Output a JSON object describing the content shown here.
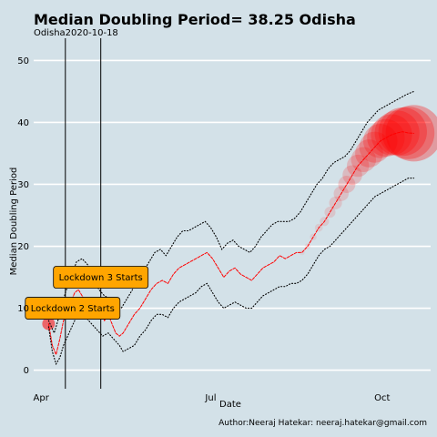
{
  "chart_data": {
    "type": "line",
    "title": "Median Doubling Period=  38.25 Odisha",
    "subtitle": "Odisha2020-10-18",
    "xlabel": "Date",
    "ylabel": "Median Doubling Period",
    "caption": "Author:Neeraj Hatekar: neeraj.hatekar@gmail.com",
    "xlim": [
      "2020-03-28",
      "2020-10-27"
    ],
    "ylim": [
      -3,
      53
    ],
    "x_ticks": [
      {
        "date": "2020-04-01",
        "label": "Apr"
      },
      {
        "date": "2020-07-01",
        "label": "Jul"
      },
      {
        "date": "2020-10-01",
        "label": "Oct"
      }
    ],
    "y_ticks": [
      0,
      10,
      20,
      30,
      40,
      50
    ],
    "grid": "horizontal",
    "colors": {
      "background": "#d3e1e8",
      "grid": "#ffffff",
      "median_line": "#ff0000",
      "bounds_line": "#000000",
      "bubble": "#ff0000",
      "annotation_fill": "#ffa500"
    },
    "vlines": [
      "2020-04-14",
      "2020-05-03"
    ],
    "annotations": [
      {
        "label": "Lockdown 2 Starts",
        "date": "2020-04-14",
        "y": 10
      },
      {
        "label": "Lockdown 3 Starts",
        "date": "2020-05-03",
        "y": 15
      }
    ],
    "series": [
      {
        "kind": "median",
        "points": [
          [
            "2020-04-05",
            7.5
          ],
          [
            "2020-04-07",
            4.0
          ],
          [
            "2020-04-09",
            2.5
          ],
          [
            "2020-04-11",
            5.0
          ],
          [
            "2020-04-13",
            8.0
          ],
          [
            "2020-04-15",
            9.0
          ],
          [
            "2020-04-17",
            11.0
          ],
          [
            "2020-04-19",
            12.5
          ],
          [
            "2020-04-21",
            13.0
          ],
          [
            "2020-04-23",
            12.0
          ],
          [
            "2020-04-25",
            11.0
          ],
          [
            "2020-04-27",
            10.0
          ],
          [
            "2020-04-29",
            9.0
          ],
          [
            "2020-05-01",
            8.5
          ],
          [
            "2020-05-03",
            9.5
          ],
          [
            "2020-05-05",
            8.0
          ],
          [
            "2020-05-07",
            9.0
          ],
          [
            "2020-05-09",
            7.5
          ],
          [
            "2020-05-11",
            6.0
          ],
          [
            "2020-05-13",
            5.5
          ],
          [
            "2020-05-15",
            6.0
          ],
          [
            "2020-05-17",
            7.0
          ],
          [
            "2020-05-19",
            8.0
          ],
          [
            "2020-05-21",
            9.0
          ],
          [
            "2020-05-24",
            10.0
          ],
          [
            "2020-05-27",
            11.5
          ],
          [
            "2020-05-30",
            13.0
          ],
          [
            "2020-06-02",
            14.0
          ],
          [
            "2020-06-05",
            14.5
          ],
          [
            "2020-06-08",
            14.0
          ],
          [
            "2020-06-11",
            15.5
          ],
          [
            "2020-06-14",
            16.5
          ],
          [
            "2020-06-17",
            17.0
          ],
          [
            "2020-06-20",
            17.5
          ],
          [
            "2020-06-23",
            18.0
          ],
          [
            "2020-06-26",
            18.5
          ],
          [
            "2020-06-29",
            19.0
          ],
          [
            "2020-07-02",
            18.0
          ],
          [
            "2020-07-05",
            16.5
          ],
          [
            "2020-07-08",
            15.0
          ],
          [
            "2020-07-11",
            16.0
          ],
          [
            "2020-07-14",
            16.5
          ],
          [
            "2020-07-17",
            15.5
          ],
          [
            "2020-07-20",
            15.0
          ],
          [
            "2020-07-23",
            14.5
          ],
          [
            "2020-07-26",
            15.5
          ],
          [
            "2020-07-29",
            16.5
          ],
          [
            "2020-08-01",
            17.0
          ],
          [
            "2020-08-04",
            17.5
          ],
          [
            "2020-08-07",
            18.5
          ],
          [
            "2020-08-10",
            18.0
          ],
          [
            "2020-08-13",
            18.5
          ],
          [
            "2020-08-16",
            19.0
          ],
          [
            "2020-08-19",
            19.0
          ],
          [
            "2020-08-22",
            20.0
          ],
          [
            "2020-08-25",
            21.5
          ],
          [
            "2020-08-28",
            23.0
          ],
          [
            "2020-08-31",
            24.0
          ],
          [
            "2020-09-03",
            25.5
          ],
          [
            "2020-09-06",
            27.0
          ],
          [
            "2020-09-09",
            28.5
          ],
          [
            "2020-09-12",
            30.0
          ],
          [
            "2020-09-15",
            31.5
          ],
          [
            "2020-09-18",
            33.0
          ],
          [
            "2020-09-21",
            34.0
          ],
          [
            "2020-09-24",
            35.0
          ],
          [
            "2020-09-27",
            36.0
          ],
          [
            "2020-09-30",
            37.0
          ],
          [
            "2020-10-03",
            37.5
          ],
          [
            "2020-10-06",
            38.0
          ],
          [
            "2020-10-09",
            38.3
          ],
          [
            "2020-10-12",
            38.5
          ],
          [
            "2020-10-15",
            38.3
          ],
          [
            "2020-10-18",
            38.25
          ]
        ]
      },
      {
        "kind": "upper_bound",
        "points": [
          [
            "2020-04-05",
            8.0
          ],
          [
            "2020-04-08",
            6.0
          ],
          [
            "2020-04-11",
            9.0
          ],
          [
            "2020-04-14",
            12.5
          ],
          [
            "2020-04-17",
            15.0
          ],
          [
            "2020-04-20",
            17.5
          ],
          [
            "2020-04-23",
            18.0
          ],
          [
            "2020-04-26",
            17.0
          ],
          [
            "2020-04-29",
            15.0
          ],
          [
            "2020-05-02",
            13.0
          ],
          [
            "2020-05-05",
            12.0
          ],
          [
            "2020-05-08",
            11.5
          ],
          [
            "2020-05-11",
            10.5
          ],
          [
            "2020-05-14",
            10.0
          ],
          [
            "2020-05-17",
            11.5
          ],
          [
            "2020-05-20",
            13.0
          ],
          [
            "2020-05-23",
            14.5
          ],
          [
            "2020-05-26",
            16.0
          ],
          [
            "2020-05-29",
            17.5
          ],
          [
            "2020-06-01",
            19.0
          ],
          [
            "2020-06-04",
            19.5
          ],
          [
            "2020-06-07",
            18.5
          ],
          [
            "2020-06-10",
            20.0
          ],
          [
            "2020-06-13",
            21.5
          ],
          [
            "2020-06-16",
            22.5
          ],
          [
            "2020-06-19",
            22.5
          ],
          [
            "2020-06-22",
            23.0
          ],
          [
            "2020-06-25",
            23.5
          ],
          [
            "2020-06-28",
            24.0
          ],
          [
            "2020-07-01",
            23.0
          ],
          [
            "2020-07-04",
            21.5
          ],
          [
            "2020-07-07",
            19.5
          ],
          [
            "2020-07-10",
            20.5
          ],
          [
            "2020-07-13",
            21.0
          ],
          [
            "2020-07-16",
            20.0
          ],
          [
            "2020-07-19",
            19.5
          ],
          [
            "2020-07-22",
            19.0
          ],
          [
            "2020-07-25",
            20.0
          ],
          [
            "2020-07-28",
            21.5
          ],
          [
            "2020-07-31",
            22.5
          ],
          [
            "2020-08-03",
            23.5
          ],
          [
            "2020-08-06",
            24.0
          ],
          [
            "2020-08-09",
            24.0
          ],
          [
            "2020-08-12",
            24.0
          ],
          [
            "2020-08-15",
            24.5
          ],
          [
            "2020-08-18",
            25.5
          ],
          [
            "2020-08-21",
            27.0
          ],
          [
            "2020-08-24",
            28.5
          ],
          [
            "2020-08-27",
            30.0
          ],
          [
            "2020-08-30",
            31.0
          ],
          [
            "2020-09-02",
            32.5
          ],
          [
            "2020-09-05",
            33.5
          ],
          [
            "2020-09-08",
            34.0
          ],
          [
            "2020-09-11",
            34.5
          ],
          [
            "2020-09-14",
            35.5
          ],
          [
            "2020-09-17",
            37.0
          ],
          [
            "2020-09-20",
            38.5
          ],
          [
            "2020-09-23",
            40.0
          ],
          [
            "2020-09-26",
            41.0
          ],
          [
            "2020-09-29",
            42.0
          ],
          [
            "2020-10-02",
            42.5
          ],
          [
            "2020-10-05",
            43.0
          ],
          [
            "2020-10-08",
            43.5
          ],
          [
            "2020-10-11",
            44.0
          ],
          [
            "2020-10-14",
            44.5
          ],
          [
            "2020-10-18",
            45.0
          ]
        ]
      },
      {
        "kind": "lower_bound",
        "points": [
          [
            "2020-04-05",
            7.0
          ],
          [
            "2020-04-07",
            3.0
          ],
          [
            "2020-04-09",
            1.0
          ],
          [
            "2020-04-11",
            2.0
          ],
          [
            "2020-04-13",
            4.0
          ],
          [
            "2020-04-16",
            6.0
          ],
          [
            "2020-04-19",
            8.0
          ],
          [
            "2020-04-22",
            9.0
          ],
          [
            "2020-04-25",
            8.5
          ],
          [
            "2020-04-28",
            7.5
          ],
          [
            "2020-05-01",
            6.5
          ],
          [
            "2020-05-04",
            5.5
          ],
          [
            "2020-05-07",
            6.0
          ],
          [
            "2020-05-10",
            5.0
          ],
          [
            "2020-05-13",
            4.0
          ],
          [
            "2020-05-15",
            3.0
          ],
          [
            "2020-05-18",
            3.5
          ],
          [
            "2020-05-21",
            4.0
          ],
          [
            "2020-05-24",
            5.5
          ],
          [
            "2020-05-27",
            6.5
          ],
          [
            "2020-05-30",
            8.0
          ],
          [
            "2020-06-02",
            9.0
          ],
          [
            "2020-06-05",
            9.0
          ],
          [
            "2020-06-08",
            8.5
          ],
          [
            "2020-06-11",
            10.0
          ],
          [
            "2020-06-14",
            11.0
          ],
          [
            "2020-06-17",
            11.5
          ],
          [
            "2020-06-20",
            12.0
          ],
          [
            "2020-06-23",
            12.5
          ],
          [
            "2020-06-26",
            13.5
          ],
          [
            "2020-06-29",
            14.0
          ],
          [
            "2020-07-02",
            12.5
          ],
          [
            "2020-07-05",
            11.0
          ],
          [
            "2020-07-08",
            10.0
          ],
          [
            "2020-07-11",
            10.5
          ],
          [
            "2020-07-14",
            11.0
          ],
          [
            "2020-07-17",
            10.5
          ],
          [
            "2020-07-20",
            10.0
          ],
          [
            "2020-07-23",
            10.0
          ],
          [
            "2020-07-26",
            11.0
          ],
          [
            "2020-07-29",
            12.0
          ],
          [
            "2020-08-01",
            12.5
          ],
          [
            "2020-08-04",
            13.0
          ],
          [
            "2020-08-07",
            13.5
          ],
          [
            "2020-08-10",
            13.5
          ],
          [
            "2020-08-13",
            14.0
          ],
          [
            "2020-08-16",
            14.0
          ],
          [
            "2020-08-19",
            14.5
          ],
          [
            "2020-08-22",
            15.5
          ],
          [
            "2020-08-25",
            17.0
          ],
          [
            "2020-08-28",
            18.5
          ],
          [
            "2020-08-31",
            19.5
          ],
          [
            "2020-09-03",
            20.0
          ],
          [
            "2020-09-06",
            21.0
          ],
          [
            "2020-09-09",
            22.0
          ],
          [
            "2020-09-12",
            23.0
          ],
          [
            "2020-09-15",
            24.0
          ],
          [
            "2020-09-18",
            25.0
          ],
          [
            "2020-09-21",
            26.0
          ],
          [
            "2020-09-24",
            27.0
          ],
          [
            "2020-09-27",
            28.0
          ],
          [
            "2020-09-30",
            28.5
          ],
          [
            "2020-10-03",
            29.0
          ],
          [
            "2020-10-06",
            29.5
          ],
          [
            "2020-10-09",
            30.0
          ],
          [
            "2020-10-12",
            30.5
          ],
          [
            "2020-10-15",
            31.0
          ],
          [
            "2020-10-18",
            31.0
          ]
        ]
      }
    ]
  }
}
